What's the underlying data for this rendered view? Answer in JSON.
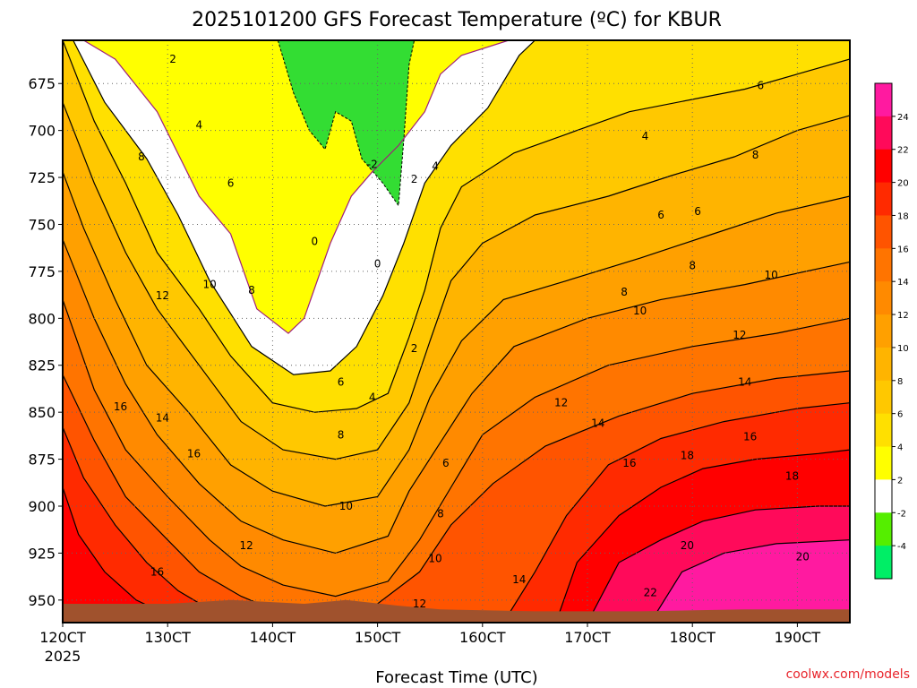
{
  "chart_data": {
    "type": "heatmap",
    "title": "2025101200 GFS Forecast Temperature (ºC) for KBUR",
    "xlabel": "Forecast Time (UTC)",
    "ylabel": "",
    "credit": "coolwx.com/models",
    "x_tick_labels": [
      "120CT",
      "130CT",
      "140CT",
      "150CT",
      "160CT",
      "170CT",
      "180CT",
      "190CT"
    ],
    "x_year_label": "2025",
    "x_range_days": [
      12,
      19.5
    ],
    "y_tick_labels": [
      "675",
      "700",
      "725",
      "750",
      "775",
      "800",
      "825",
      "850",
      "875",
      "900",
      "925",
      "950"
    ],
    "y_range_hpa": [
      962,
      652
    ],
    "grid": true,
    "contour_interval_c": 2,
    "colorbar": {
      "labels": [
        "24",
        "22",
        "20",
        "18",
        "16",
        "14",
        "12",
        "10",
        "8",
        "6",
        "4",
        "2",
        "-2",
        "-4"
      ],
      "colors": [
        "#ff1aa0",
        "#ff0a5a",
        "#ff0000",
        "#ff2a00",
        "#ff5400",
        "#ff7400",
        "#ff8a00",
        "#ffa000",
        "#ffb400",
        "#ffc800",
        "#ffe000",
        "#ffff00",
        "#ffffff",
        "#55ee00",
        "#00ee66"
      ]
    },
    "series": [
      {
        "name": "0",
        "points": [
          [
            12.2,
            652
          ],
          [
            12.5,
            662
          ],
          [
            12.9,
            690
          ],
          [
            13.3,
            735
          ],
          [
            13.6,
            755
          ],
          [
            13.85,
            795
          ],
          [
            14.15,
            808
          ],
          [
            14.3,
            800
          ],
          [
            14.55,
            760
          ],
          [
            14.75,
            735
          ],
          [
            14.95,
            722
          ],
          [
            15.2,
            708
          ],
          [
            15.45,
            690
          ],
          [
            15.6,
            670
          ],
          [
            15.8,
            660
          ],
          [
            16.25,
            652
          ]
        ]
      },
      {
        "name": "2",
        "points": [
          [
            12.1,
            652
          ],
          [
            12.4,
            685
          ],
          [
            12.8,
            715
          ],
          [
            13.1,
            745
          ],
          [
            13.4,
            780
          ],
          [
            13.8,
            815
          ],
          [
            14.2,
            830
          ],
          [
            14.55,
            828
          ],
          [
            14.8,
            815
          ],
          [
            15.05,
            788
          ],
          [
            15.25,
            760
          ],
          [
            15.45,
            728
          ],
          [
            15.7,
            708
          ],
          [
            16.05,
            688
          ],
          [
            16.35,
            660
          ],
          [
            16.5,
            652
          ]
        ]
      },
      {
        "name": "4",
        "points": [
          [
            12.0,
            652
          ],
          [
            12.3,
            695
          ],
          [
            12.6,
            728
          ],
          [
            12.9,
            765
          ],
          [
            13.3,
            795
          ],
          [
            13.6,
            820
          ],
          [
            14.0,
            845
          ],
          [
            14.4,
            850
          ],
          [
            14.8,
            848
          ],
          [
            15.1,
            840
          ],
          [
            15.3,
            810
          ],
          [
            15.45,
            785
          ],
          [
            15.6,
            752
          ],
          [
            15.8,
            730
          ],
          [
            16.3,
            712
          ],
          [
            16.9,
            700
          ],
          [
            17.4,
            690
          ],
          [
            18.5,
            678
          ],
          [
            19.0,
            670
          ],
          [
            19.5,
            662
          ]
        ]
      },
      {
        "name": "6",
        "points": [
          [
            12.0,
            685
          ],
          [
            12.3,
            728
          ],
          [
            12.6,
            765
          ],
          [
            12.9,
            795
          ],
          [
            13.3,
            825
          ],
          [
            13.7,
            855
          ],
          [
            14.1,
            870
          ],
          [
            14.6,
            875
          ],
          [
            15.0,
            870
          ],
          [
            15.3,
            845
          ],
          [
            15.5,
            812
          ],
          [
            15.7,
            780
          ],
          [
            16.0,
            760
          ],
          [
            16.5,
            745
          ],
          [
            17.2,
            735
          ],
          [
            17.8,
            724
          ],
          [
            18.4,
            714
          ],
          [
            19.0,
            700
          ],
          [
            19.5,
            692
          ]
        ]
      },
      {
        "name": "8",
        "points": [
          [
            12.0,
            722
          ],
          [
            12.2,
            752
          ],
          [
            12.5,
            790
          ],
          [
            12.8,
            825
          ],
          [
            13.2,
            850
          ],
          [
            13.6,
            878
          ],
          [
            14.0,
            892
          ],
          [
            14.5,
            900
          ],
          [
            15.0,
            895
          ],
          [
            15.3,
            870
          ],
          [
            15.5,
            842
          ],
          [
            15.8,
            812
          ],
          [
            16.2,
            790
          ],
          [
            16.8,
            780
          ],
          [
            17.5,
            768
          ],
          [
            18.2,
            755
          ],
          [
            18.8,
            744
          ],
          [
            19.5,
            735
          ]
        ]
      },
      {
        "name": "10",
        "points": [
          [
            12.0,
            758
          ],
          [
            12.3,
            800
          ],
          [
            12.6,
            835
          ],
          [
            12.9,
            862
          ],
          [
            13.3,
            888
          ],
          [
            13.7,
            908
          ],
          [
            14.1,
            918
          ],
          [
            14.6,
            925
          ],
          [
            15.1,
            916
          ],
          [
            15.3,
            892
          ],
          [
            15.6,
            866
          ],
          [
            15.9,
            840
          ],
          [
            16.3,
            815
          ],
          [
            17.0,
            800
          ],
          [
            17.7,
            790
          ],
          [
            18.5,
            782
          ],
          [
            19.5,
            770
          ]
        ]
      },
      {
        "name": "12",
        "points": [
          [
            12.0,
            790
          ],
          [
            12.3,
            838
          ],
          [
            12.6,
            870
          ],
          [
            13.0,
            895
          ],
          [
            13.4,
            918
          ],
          [
            13.7,
            932
          ],
          [
            14.1,
            942
          ],
          [
            14.6,
            948
          ],
          [
            15.1,
            940
          ],
          [
            15.4,
            918
          ],
          [
            15.7,
            890
          ],
          [
            16.0,
            862
          ],
          [
            16.5,
            842
          ],
          [
            17.2,
            825
          ],
          [
            18.0,
            815
          ],
          [
            18.8,
            808
          ],
          [
            19.5,
            800
          ]
        ]
      },
      {
        "name": "14",
        "points": [
          [
            12.0,
            830
          ],
          [
            12.3,
            865
          ],
          [
            12.6,
            895
          ],
          [
            13.0,
            918
          ],
          [
            13.3,
            935
          ],
          [
            13.7,
            948
          ],
          [
            14.0,
            955
          ],
          [
            14.5,
            958
          ],
          [
            15.0,
            952
          ],
          [
            15.4,
            935
          ],
          [
            15.7,
            910
          ],
          [
            16.1,
            888
          ],
          [
            16.6,
            868
          ],
          [
            17.3,
            852
          ],
          [
            18.0,
            840
          ],
          [
            18.8,
            832
          ],
          [
            19.5,
            828
          ]
        ]
      },
      {
        "name": "16",
        "points": [
          [
            12.0,
            858
          ],
          [
            12.2,
            885
          ],
          [
            12.5,
            910
          ],
          [
            12.8,
            930
          ],
          [
            13.1,
            945
          ],
          [
            13.4,
            955
          ],
          [
            13.8,
            960
          ],
          [
            14.3,
            962
          ],
          [
            16.2,
            962
          ],
          [
            16.5,
            935
          ],
          [
            16.8,
            905
          ],
          [
            17.2,
            878
          ],
          [
            17.7,
            864
          ],
          [
            18.3,
            855
          ],
          [
            19.0,
            848
          ],
          [
            19.5,
            845
          ]
        ]
      },
      {
        "name": "18",
        "points": [
          [
            12.0,
            890
          ],
          [
            12.15,
            915
          ],
          [
            12.4,
            935
          ],
          [
            12.7,
            950
          ],
          [
            13.0,
            958
          ],
          [
            13.3,
            962
          ],
          [
            16.7,
            962
          ],
          [
            16.9,
            930
          ],
          [
            17.3,
            905
          ],
          [
            17.7,
            890
          ],
          [
            18.1,
            880
          ],
          [
            18.6,
            875
          ],
          [
            19.2,
            872
          ],
          [
            19.5,
            870
          ]
        ]
      },
      {
        "name": "20",
        "points": [
          [
            17.0,
            962
          ],
          [
            17.3,
            930
          ],
          [
            17.7,
            918
          ],
          [
            18.1,
            908
          ],
          [
            18.6,
            902
          ],
          [
            19.2,
            900
          ],
          [
            19.5,
            900
          ]
        ]
      },
      {
        "name": "22",
        "points": [
          [
            17.6,
            962
          ],
          [
            17.9,
            935
          ],
          [
            18.3,
            925
          ],
          [
            18.8,
            920
          ],
          [
            19.5,
            918
          ]
        ]
      }
    ],
    "contour_labels": [
      {
        "text": "2",
        "x": 13.05,
        "y": 662
      },
      {
        "text": "4",
        "x": 13.3,
        "y": 697
      },
      {
        "text": "8",
        "x": 12.75,
        "y": 714
      },
      {
        "text": "6",
        "x": 13.6,
        "y": 728
      },
      {
        "text": "10",
        "x": 13.4,
        "y": 782
      },
      {
        "text": "8",
        "x": 13.8,
        "y": 785
      },
      {
        "text": "12",
        "x": 12.95,
        "y": 788
      },
      {
        "text": "16",
        "x": 12.55,
        "y": 847
      },
      {
        "text": "14",
        "x": 12.95,
        "y": 853
      },
      {
        "text": "16",
        "x": 13.25,
        "y": 872
      },
      {
        "text": "12",
        "x": 13.75,
        "y": 921
      },
      {
        "text": "16",
        "x": 12.9,
        "y": 935
      },
      {
        "text": "0",
        "x": 14.4,
        "y": 759
      },
      {
        "text": "0",
        "x": 15.0,
        "y": 771
      },
      {
        "text": "-2",
        "x": 14.95,
        "y": 718
      },
      {
        "text": "2",
        "x": 15.35,
        "y": 726
      },
      {
        "text": "2",
        "x": 15.35,
        "y": 816
      },
      {
        "text": "4",
        "x": 15.55,
        "y": 719
      },
      {
        "text": "6",
        "x": 14.65,
        "y": 834
      },
      {
        "text": "4",
        "x": 14.95,
        "y": 842
      },
      {
        "text": "8",
        "x": 14.65,
        "y": 862
      },
      {
        "text": "10",
        "x": 14.7,
        "y": 900
      },
      {
        "text": "6",
        "x": 15.65,
        "y": 877
      },
      {
        "text": "8",
        "x": 15.6,
        "y": 904
      },
      {
        "text": "10",
        "x": 15.55,
        "y": 928
      },
      {
        "text": "12",
        "x": 15.4,
        "y": 952
      },
      {
        "text": "14",
        "x": 16.35,
        "y": 939
      },
      {
        "text": "12",
        "x": 16.75,
        "y": 845
      },
      {
        "text": "14",
        "x": 17.1,
        "y": 856
      },
      {
        "text": "16",
        "x": 17.4,
        "y": 877
      },
      {
        "text": "10",
        "x": 17.5,
        "y": 796
      },
      {
        "text": "8",
        "x": 17.35,
        "y": 786
      },
      {
        "text": "6",
        "x": 17.7,
        "y": 745
      },
      {
        "text": "6",
        "x": 18.05,
        "y": 743
      },
      {
        "text": "4",
        "x": 17.55,
        "y": 703
      },
      {
        "text": "8",
        "x": 18.0,
        "y": 772
      },
      {
        "text": "18",
        "x": 17.95,
        "y": 873
      },
      {
        "text": "20",
        "x": 17.95,
        "y": 921
      },
      {
        "text": "22",
        "x": 17.6,
        "y": 946
      },
      {
        "text": "8",
        "x": 18.6,
        "y": 713
      },
      {
        "text": "6",
        "x": 18.65,
        "y": 676
      },
      {
        "text": "10",
        "x": 18.75,
        "y": 777
      },
      {
        "text": "12",
        "x": 18.45,
        "y": 809
      },
      {
        "text": "14",
        "x": 18.5,
        "y": 834
      },
      {
        "text": "16",
        "x": 18.55,
        "y": 863
      },
      {
        "text": "18",
        "x": 18.95,
        "y": 884
      },
      {
        "text": "20",
        "x": 19.05,
        "y": 927
      }
    ],
    "cold_region_points": [
      [
        14.05,
        652
      ],
      [
        14.2,
        680
      ],
      [
        14.35,
        700
      ],
      [
        14.5,
        710
      ],
      [
        14.6,
        690
      ],
      [
        14.75,
        695
      ],
      [
        14.85,
        715
      ],
      [
        15.05,
        728
      ],
      [
        15.2,
        740
      ],
      [
        15.25,
        705
      ],
      [
        15.3,
        665
      ],
      [
        15.35,
        652
      ]
    ]
  }
}
